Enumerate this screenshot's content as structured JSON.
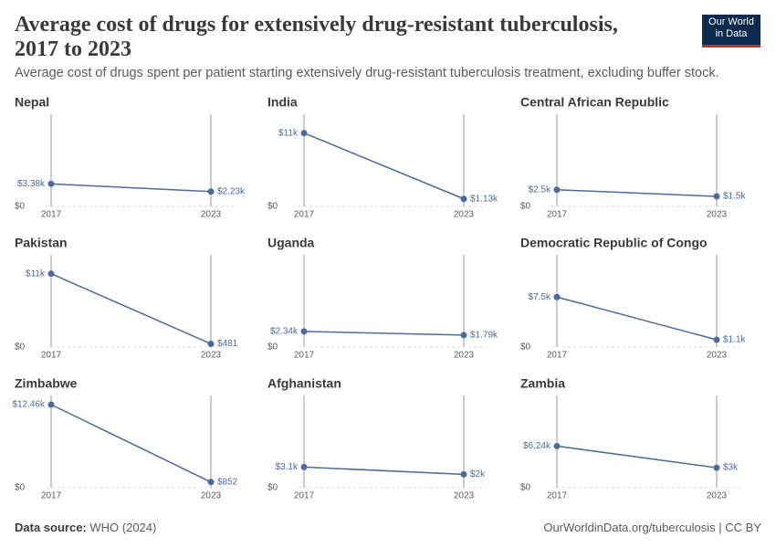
{
  "title": "Average cost of drugs for extensively drug-resistant tuberculosis, 2017 to 2023",
  "subtitle": "Average cost of drugs spent per patient starting extensively drug-resistant tuberculosis treatment, excluding buffer stock.",
  "logo": [
    "Our World",
    "in Data"
  ],
  "source_label": "Data source:",
  "source": "WHO (2024)",
  "url": "OurWorldinData.org/tuberculosis | CC BY",
  "chart_data": [
    {
      "type": "line",
      "title": "Nepal",
      "x": [
        2017,
        2023
      ],
      "values": [
        3380,
        2230
      ],
      "value_labels": [
        "$3.38k",
        "$2.23k"
      ],
      "color": "#4c6a9c",
      "ylim": [
        0,
        12460
      ],
      "yticks": [
        {
          "value": 0,
          "label": "$0"
        }
      ]
    },
    {
      "type": "line",
      "title": "India",
      "x": [
        2017,
        2023
      ],
      "values": [
        11000,
        1130
      ],
      "value_labels": [
        "$11k",
        "$1.13k"
      ],
      "color": "#4c6a9c",
      "ylim": [
        0,
        12460
      ],
      "yticks": [
        {
          "value": 0,
          "label": "$0"
        }
      ]
    },
    {
      "type": "line",
      "title": "Central African Republic",
      "x": [
        2017,
        2023
      ],
      "values": [
        2500,
        1500
      ],
      "value_labels": [
        "$2.5k",
        "$1.5k"
      ],
      "color": "#4c6a9c",
      "ylim": [
        0,
        12460
      ],
      "yticks": [
        {
          "value": 0,
          "label": "$0"
        }
      ]
    },
    {
      "type": "line",
      "title": "Pakistan",
      "x": [
        2017,
        2023
      ],
      "values": [
        11000,
        481
      ],
      "value_labels": [
        "$11k",
        "$481"
      ],
      "color": "#4c6a9c",
      "ylim": [
        0,
        12460
      ],
      "yticks": [
        {
          "value": 0,
          "label": "$0"
        }
      ]
    },
    {
      "type": "line",
      "title": "Uganda",
      "x": [
        2017,
        2023
      ],
      "values": [
        2340,
        1790
      ],
      "value_labels": [
        "$2.34k",
        "$1.79k"
      ],
      "color": "#4c6a9c",
      "ylim": [
        0,
        12460
      ],
      "yticks": [
        {
          "value": 0,
          "label": "$0"
        }
      ]
    },
    {
      "type": "line",
      "title": "Democratic Republic of Congo",
      "x": [
        2017,
        2023
      ],
      "values": [
        7500,
        1100
      ],
      "value_labels": [
        "$7.5k",
        "$1.1k"
      ],
      "color": "#4c6a9c",
      "ylim": [
        0,
        12460
      ],
      "yticks": [
        {
          "value": 0,
          "label": "$0"
        }
      ]
    },
    {
      "type": "line",
      "title": "Zimbabwe",
      "x": [
        2017,
        2023
      ],
      "values": [
        12460,
        852
      ],
      "value_labels": [
        "$12.46k",
        "$852"
      ],
      "color": "#4c6a9c",
      "ylim": [
        0,
        12460
      ],
      "yticks": [
        {
          "value": 0,
          "label": "$0"
        }
      ]
    },
    {
      "type": "line",
      "title": "Afghanistan",
      "x": [
        2017,
        2023
      ],
      "values": [
        3100,
        2000
      ],
      "value_labels": [
        "$3.1k",
        "$2k"
      ],
      "color": "#4c6a9c",
      "ylim": [
        0,
        12460
      ],
      "yticks": [
        {
          "value": 0,
          "label": "$0"
        }
      ]
    },
    {
      "type": "line",
      "title": "Zambia",
      "x": [
        2017,
        2023
      ],
      "values": [
        6240,
        3000
      ],
      "value_labels": [
        "$6.24k",
        "$3k"
      ],
      "color": "#4c6a9c",
      "ylim": [
        0,
        12460
      ],
      "yticks": [
        {
          "value": 0,
          "label": "$0"
        }
      ]
    }
  ]
}
